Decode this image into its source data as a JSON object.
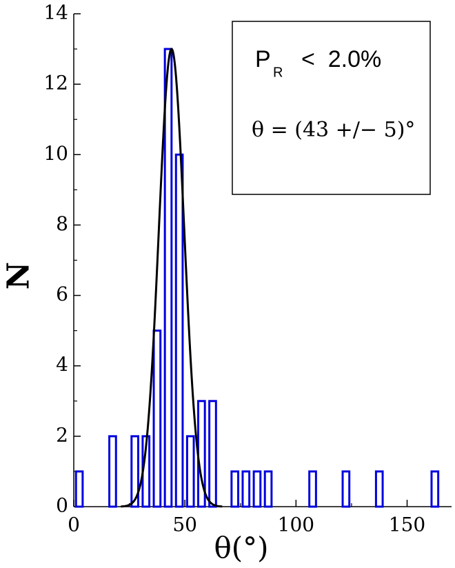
{
  "chart_data": {
    "type": "histogram",
    "xlabel": "θ(°)",
    "ylabel": "N",
    "bins": [
      0,
      5,
      10,
      15,
      20,
      25,
      30,
      35,
      40,
      45,
      50,
      55,
      60,
      65,
      70,
      75,
      80,
      85,
      90,
      95,
      100,
      105,
      110,
      115,
      120,
      125,
      130,
      135,
      140,
      145,
      150,
      155,
      160,
      165
    ],
    "counts": [
      1,
      0,
      0,
      2,
      0,
      2,
      2,
      5,
      13,
      10,
      2,
      3,
      3,
      0,
      1,
      1,
      1,
      1,
      0,
      0,
      0,
      1,
      0,
      0,
      1,
      0,
      0,
      1,
      0,
      0,
      0,
      0,
      1
    ],
    "color": "#0000dd",
    "fit": {
      "amplitude": 13,
      "mean": 44,
      "sigma": 5.7,
      "color": "#000000"
    },
    "xlim": [
      0,
      170
    ],
    "ylim": [
      0,
      14
    ],
    "xticks": [
      0,
      50,
      100,
      150
    ],
    "yticks": [
      0,
      2,
      4,
      6,
      8,
      10,
      12,
      14
    ],
    "xminor_ticks": [
      25,
      75,
      125
    ],
    "yminor_ticks": [
      1,
      3,
      5,
      7,
      9,
      11,
      13
    ],
    "annotation": {
      "p": "P",
      "sub": "R",
      "rest": "<  2.0%",
      "theta": "θ = (43 +/− 5)°"
    }
  }
}
